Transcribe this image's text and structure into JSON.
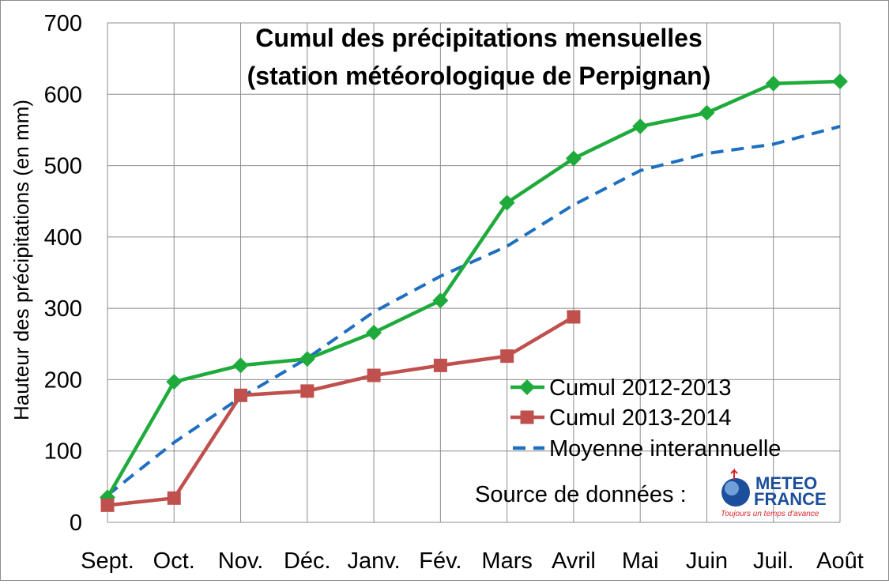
{
  "chart_data": {
    "type": "line",
    "title_line1": "Cumul des précipitations mensuelles",
    "title_line2": "(station météorologique de Perpignan)",
    "ylabel": "Hauteur des précipitations (en mm)",
    "xlabel": "",
    "categories": [
      "Sept.",
      "Oct.",
      "Nov.",
      "Déc.",
      "Janv.",
      "Fév.",
      "Mars",
      "Avril",
      "Mai",
      "Juin",
      "Juil.",
      "Août"
    ],
    "ylim": [
      0,
      700
    ],
    "yticks": [
      0,
      100,
      200,
      300,
      400,
      500,
      600,
      700
    ],
    "grid": true,
    "legend_position": "bottom-right",
    "series": [
      {
        "name": "Cumul 2012-2013",
        "color": "#1faa3c",
        "marker": "diamond",
        "dash": "solid",
        "values": [
          35,
          197,
          220,
          229,
          266,
          311,
          448,
          510,
          555,
          574,
          615,
          618
        ]
      },
      {
        "name": "Cumul 2013-2014",
        "color": "#c0504d",
        "marker": "square",
        "dash": "solid",
        "values": [
          24,
          34,
          178,
          184,
          206,
          220,
          233,
          288,
          null,
          null,
          null,
          null
        ]
      },
      {
        "name": "Moyenne interannuelle",
        "color": "#1f6fbf",
        "marker": "none",
        "dash": "dashed",
        "values": [
          38,
          112,
          175,
          230,
          295,
          345,
          387,
          445,
          493,
          517,
          530,
          555
        ]
      }
    ]
  },
  "source": {
    "label": "Source de données :",
    "logo_line1": "METEO",
    "logo_line2": "FRANCE",
    "logo_tagline": "Toujours un temps d'avance"
  }
}
